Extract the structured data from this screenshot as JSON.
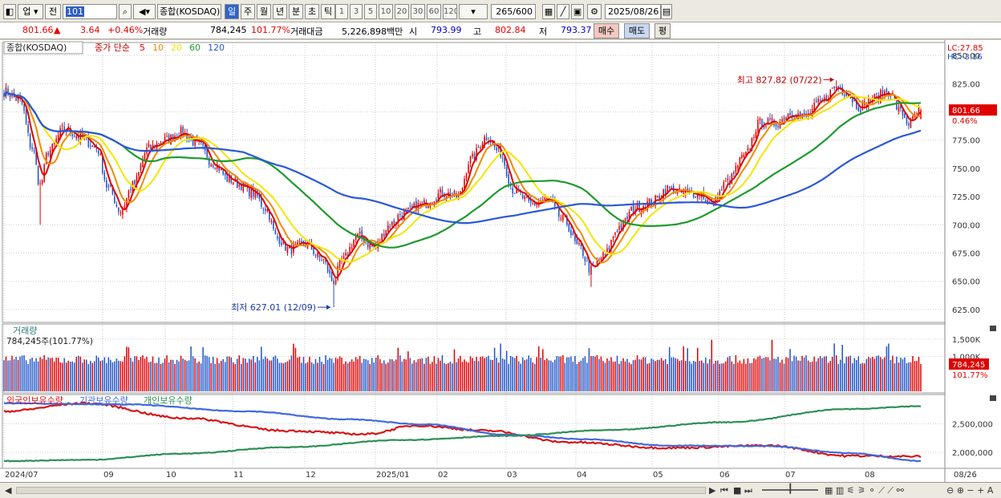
{
  "toolbar": {
    "type_label": "업",
    "prev_label": "전",
    "code": "101",
    "name_label": "종합(KOSDAQ)",
    "periods": [
      "일",
      "주",
      "월",
      "년",
      "분",
      "초",
      "틱"
    ],
    "active_period": 0,
    "minutes": [
      "1",
      "3",
      "5",
      "10",
      "20",
      "30",
      "60",
      "120"
    ],
    "count": "265",
    "count_max": "/600",
    "date": "2025/08/26"
  },
  "info": {
    "price": "801.66",
    "change": "3.64",
    "change_pct": "+0.46%",
    "volume_label": "거래량",
    "volume": "784,245",
    "volume_pct": "101.77%",
    "amount_label": "거래대금",
    "amount": "5,226,898백만",
    "open_label": "시",
    "open": "793.99",
    "high_label": "고",
    "high": "802.84",
    "low_label": "저",
    "low": "793.37",
    "buy_label": "매수",
    "sell_label": "매도",
    "avg_label": "평"
  },
  "colors": {
    "up": "#e00000",
    "down": "#1f55c8",
    "ma5": "#e00000",
    "ma10": "#f08a00",
    "ma20": "#f3e600",
    "ma60": "#1e9a2e",
    "ma120": "#2a57d6",
    "foreign": "#d81515",
    "institution": "#3f69e0",
    "individual": "#2f8f55"
  },
  "chart_data": [
    {
      "type": "candlestick",
      "title": "종합(KOSDAQ)",
      "ma_label": "종가 단순",
      "ma_periods": [
        "5",
        "10",
        "20",
        "60",
        "120"
      ],
      "y_ticks": [
        "625.00",
        "650.00",
        "675.00",
        "700.00",
        "725.00",
        "750.00",
        "775.00",
        "800.00",
        "825.00",
        "850.00"
      ],
      "ylim": [
        615,
        860
      ],
      "lc_label": "LC:27.85",
      "hc_label": "HC:-3.16",
      "last_price_tag": "801.66",
      "last_pct_tag": "0.46%",
      "max_annotation": "최고 827.82 (07/22)",
      "min_annotation": "최저 627.01 (12/09)",
      "x_labels": [
        "2024/07",
        "09",
        "10",
        "11",
        "12",
        "2025/01",
        "02",
        "03",
        "04",
        "05",
        "06",
        "07",
        "08",
        "08/26"
      ],
      "ohlc_keypoints": [
        [
          0,
          818
        ],
        [
          8,
          810
        ],
        [
          14,
          768
        ],
        [
          18,
          735
        ],
        [
          22,
          765
        ],
        [
          30,
          785
        ],
        [
          38,
          778
        ],
        [
          46,
          768
        ],
        [
          52,
          732
        ],
        [
          58,
          712
        ],
        [
          64,
          735
        ],
        [
          72,
          768
        ],
        [
          80,
          775
        ],
        [
          88,
          782
        ],
        [
          96,
          772
        ],
        [
          104,
          755
        ],
        [
          112,
          740
        ],
        [
          118,
          735
        ],
        [
          124,
          728
        ],
        [
          130,
          715
        ],
        [
          136,
          688
        ],
        [
          142,
          678
        ],
        [
          150,
          683
        ],
        [
          158,
          670
        ],
        [
          164,
          650
        ],
        [
          168,
          668
        ],
        [
          176,
          690
        ],
        [
          184,
          680
        ],
        [
          192,
          700
        ],
        [
          198,
          710
        ],
        [
          208,
          718
        ],
        [
          218,
          728
        ],
        [
          226,
          725
        ],
        [
          232,
          758
        ],
        [
          240,
          778
        ],
        [
          246,
          765
        ],
        [
          254,
          730
        ],
        [
          262,
          718
        ],
        [
          270,
          722
        ],
        [
          278,
          705
        ],
        [
          286,
          680
        ],
        [
          292,
          660
        ],
        [
          298,
          672
        ],
        [
          306,
          698
        ],
        [
          314,
          715
        ],
        [
          322,
          720
        ],
        [
          330,
          732
        ],
        [
          338,
          728
        ],
        [
          346,
          728
        ],
        [
          352,
          718
        ],
        [
          360,
          738
        ],
        [
          368,
          760
        ],
        [
          376,
          790
        ],
        [
          384,
          790
        ],
        [
          392,
          800
        ],
        [
          398,
          795
        ],
        [
          406,
          808
        ],
        [
          414,
          822
        ],
        [
          418,
          818
        ],
        [
          426,
          804
        ],
        [
          432,
          812
        ],
        [
          440,
          818
        ],
        [
          446,
          800
        ],
        [
          450,
          790
        ],
        [
          456,
          801.66
        ]
      ]
    },
    {
      "type": "bar",
      "title": "거래량",
      "summary": "784,245주(101.77%)",
      "y_ticks": [
        "1,500K",
        "1,000K"
      ],
      "ylim": [
        0,
        1750
      ],
      "last_tag": "784,245",
      "last_pct_tag": "101.77%",
      "unit": "K"
    },
    {
      "type": "line",
      "legend": [
        "외국인보유수량",
        "기관보유수량",
        "개인보유수량"
      ],
      "y_ticks": [
        "2,500,000",
        "2,000,000"
      ],
      "ylim": [
        1750000,
        2900000
      ],
      "series": [
        {
          "name": "외국인보유수량",
          "keypoints": [
            [
              0,
              2720000
            ],
            [
              40,
              2860000
            ],
            [
              90,
              2600000
            ],
            [
              140,
              2380000
            ],
            [
              180,
              2320000
            ],
            [
              205,
              2470000
            ],
            [
              240,
              2380000
            ],
            [
              280,
              2180000
            ],
            [
              330,
              2080000
            ],
            [
              380,
              2120000
            ],
            [
              420,
              1940000
            ],
            [
              456,
              1930000
            ]
          ]
        },
        {
          "name": "기관보유수량",
          "keypoints": [
            [
              0,
              2860000
            ],
            [
              60,
              2840000
            ],
            [
              120,
              2720000
            ],
            [
              170,
              2580000
            ],
            [
              210,
              2490000
            ],
            [
              250,
              2310000
            ],
            [
              290,
              2230000
            ],
            [
              330,
              2120000
            ],
            [
              380,
              2110000
            ],
            [
              420,
              1990000
            ],
            [
              456,
              1850000
            ]
          ]
        },
        {
          "name": "개인보유수량",
          "keypoints": [
            [
              0,
              1850000
            ],
            [
              40,
              1870000
            ],
            [
              90,
              1980000
            ],
            [
              140,
              2090000
            ],
            [
              200,
              2220000
            ],
            [
              250,
              2290000
            ],
            [
              300,
              2390000
            ],
            [
              360,
              2530000
            ],
            [
              420,
              2760000
            ],
            [
              456,
              2810000
            ]
          ]
        }
      ]
    }
  ],
  "bottom": {
    "zoom_label": "⊖ ⊕ − + A"
  }
}
